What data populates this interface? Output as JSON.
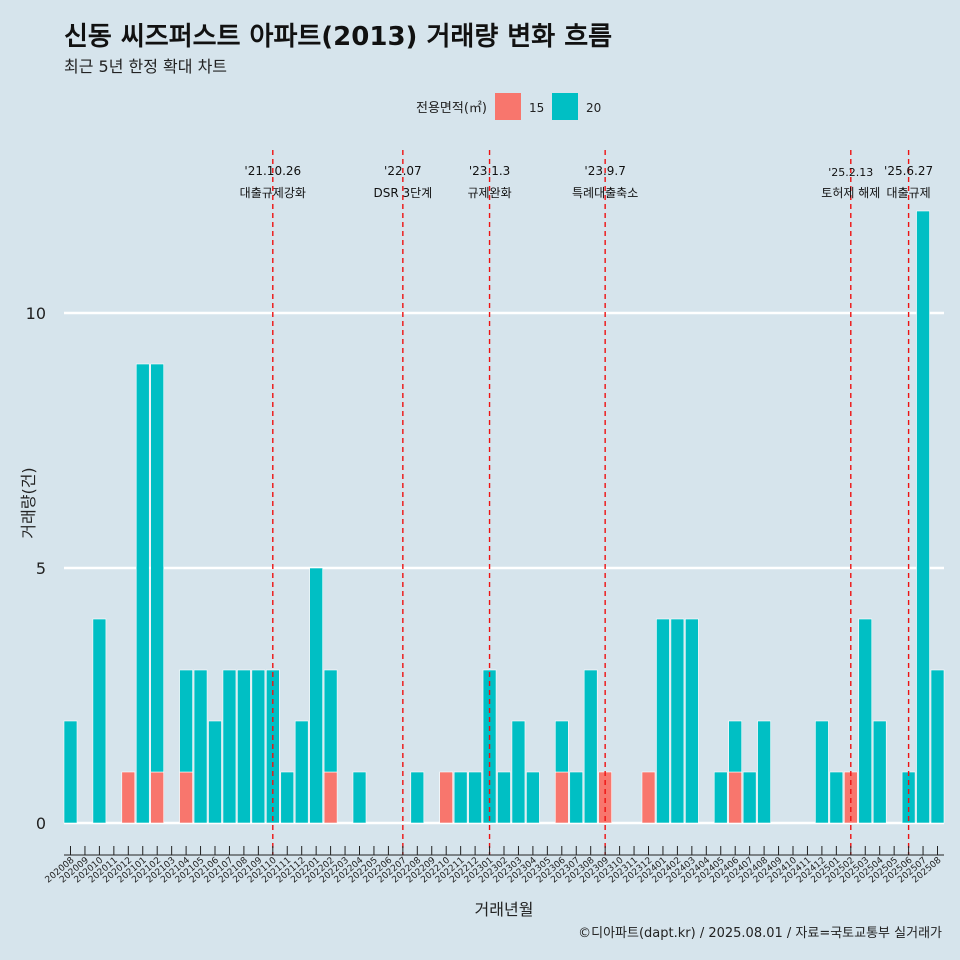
{
  "title": "신동 씨즈퍼스트 아파트(2013) 거래량 변화 흐름",
  "subtitle": "최근 5년 한정 확대 차트",
  "caption": "©디아파트(dapt.kr) / 2025.08.01 / 자료=국토교통부 실거래가",
  "chart_data": {
    "type": "bar",
    "xlabel": "거래년월",
    "ylabel": "거래량(건)",
    "ylim": [
      0,
      12
    ],
    "yticks": [
      0,
      5,
      10
    ],
    "legend": {
      "title": "전용면적(㎡)",
      "placement": "top",
      "entries": [
        {
          "name": "15",
          "color": "#F8766D"
        },
        {
          "name": "20",
          "color": "#00BFC4"
        }
      ]
    },
    "categories": [
      "202008",
      "202009",
      "202010",
      "202011",
      "202012",
      "202101",
      "202102",
      "202103",
      "202104",
      "202105",
      "202106",
      "202107",
      "202108",
      "202109",
      "202110",
      "202111",
      "202112",
      "202201",
      "202202",
      "202203",
      "202204",
      "202205",
      "202206",
      "202207",
      "202208",
      "202209",
      "202210",
      "202211",
      "202212",
      "202301",
      "202302",
      "202303",
      "202304",
      "202305",
      "202306",
      "202307",
      "202308",
      "202309",
      "202310",
      "202311",
      "202312",
      "202401",
      "202402",
      "202403",
      "202404",
      "202405",
      "202406",
      "202407",
      "202408",
      "202409",
      "202410",
      "202411",
      "202412",
      "202501",
      "202502",
      "202503",
      "202504",
      "202505",
      "202506",
      "202507",
      "202508"
    ],
    "series": [
      {
        "name": "15",
        "color": "#F8766D",
        "values": [
          0,
          0,
          0,
          0,
          1,
          0,
          1,
          0,
          1,
          0,
          0,
          0,
          0,
          0,
          0,
          0,
          0,
          0,
          1,
          0,
          0,
          0,
          0,
          0,
          0,
          0,
          1,
          0,
          0,
          0,
          0,
          0,
          0,
          0,
          1,
          0,
          0,
          1,
          0,
          0,
          1,
          0,
          0,
          0,
          0,
          0,
          1,
          0,
          0,
          0,
          0,
          0,
          0,
          0,
          1,
          0,
          0,
          0,
          0,
          0,
          0
        ]
      },
      {
        "name": "20",
        "color": "#00BFC4",
        "values": [
          2,
          0,
          4,
          0,
          0,
          9,
          8,
          0,
          2,
          3,
          2,
          3,
          3,
          3,
          3,
          1,
          2,
          5,
          2,
          0,
          1,
          0,
          0,
          0,
          1,
          0,
          0,
          1,
          1,
          3,
          1,
          2,
          1,
          0,
          1,
          1,
          3,
          0,
          0,
          0,
          0,
          4,
          4,
          4,
          0,
          1,
          1,
          1,
          2,
          0,
          0,
          0,
          2,
          1,
          0,
          4,
          2,
          0,
          1,
          12,
          3
        ]
      }
    ],
    "annotations": [
      {
        "date": "'21.10.26",
        "label": "대출규제강화",
        "category": "202110"
      },
      {
        "date": "'22.07",
        "label": "DSR 3단계",
        "category": "202207"
      },
      {
        "date": "'23.1.3",
        "label": "규제완화",
        "category": "202301"
      },
      {
        "date": "'23.9.7",
        "label": "특례대출축소",
        "category": "202309"
      },
      {
        "date": "'25.2.13",
        "label": "토허제 해제",
        "category": "202502"
      },
      {
        "date": "'25.6.27",
        "label": "대출규제",
        "category": "202506"
      }
    ]
  }
}
